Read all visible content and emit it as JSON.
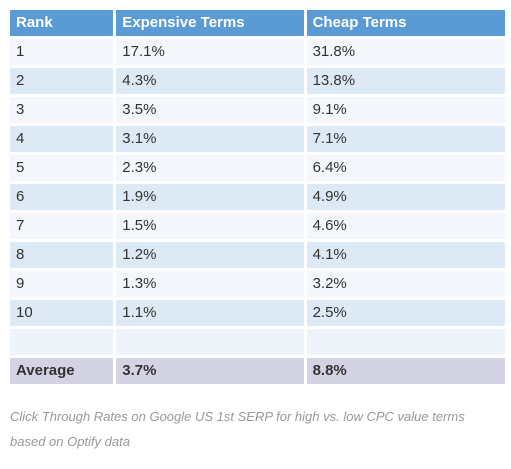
{
  "table": {
    "headers": {
      "rank": "Rank",
      "expensive": "Expensive Terms",
      "cheap": "Cheap Terms"
    },
    "rows": [
      {
        "rank": "1",
        "expensive": "17.1%",
        "cheap": "31.8%"
      },
      {
        "rank": "2",
        "expensive": "4.3%",
        "cheap": "13.8%"
      },
      {
        "rank": "3",
        "expensive": "3.5%",
        "cheap": "9.1%"
      },
      {
        "rank": "4",
        "expensive": "3.1%",
        "cheap": "7.1%"
      },
      {
        "rank": "5",
        "expensive": "2.3%",
        "cheap": "6.4%"
      },
      {
        "rank": "6",
        "expensive": "1.9%",
        "cheap": "4.9%"
      },
      {
        "rank": "7",
        "expensive": "1.5%",
        "cheap": "4.6%"
      },
      {
        "rank": "8",
        "expensive": "1.2%",
        "cheap": "4.1%"
      },
      {
        "rank": "9",
        "expensive": "1.3%",
        "cheap": "3.2%"
      },
      {
        "rank": "10",
        "expensive": "1.1%",
        "cheap": "2.5%"
      }
    ],
    "average": {
      "label": "Average",
      "expensive": "3.7%",
      "cheap": "8.8%"
    }
  },
  "caption": "Click Through Rates on Google US 1st SERP for high vs. low CPC value terms based on Optify data",
  "colors": {
    "header": "#5b9bd5",
    "row_light": "#f3f6fa",
    "row_dark": "#dde9f4",
    "average_row": "#d4d3e4",
    "caption_text": "#999999"
  }
}
